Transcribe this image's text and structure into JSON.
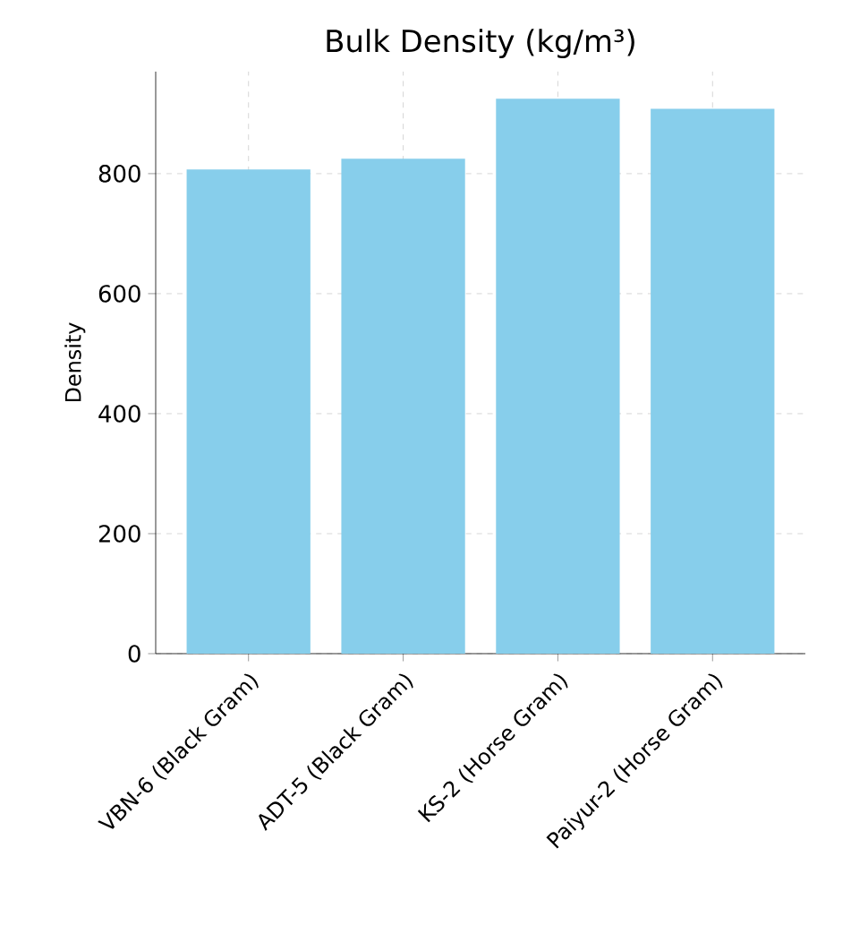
{
  "chart_data": {
    "type": "bar",
    "title": "Bulk Density (kg/m³)",
    "ylabel": "Density",
    "categories": [
      "VBN-6 (Black Gram)",
      "ADT-5 (Black Gram)",
      "KS-2 (Horse Gram)",
      "Paiyur-2 (Horse Gram)"
    ],
    "values": [
      807,
      825,
      925,
      908
    ],
    "color": "#87ceeb",
    "ylim": [
      0,
      970
    ],
    "yticks": [
      0,
      200,
      400,
      600,
      800
    ],
    "grid": true
  }
}
